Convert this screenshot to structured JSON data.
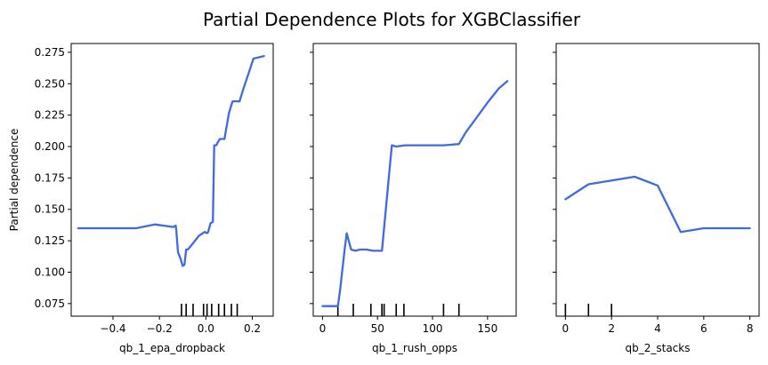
{
  "figure": {
    "title": "Partial Dependence Plots for XGBClassifier"
  },
  "colors": {
    "line": "#4169e1",
    "rug": "#000000"
  },
  "chart_data": [
    {
      "type": "line",
      "xlabel": "qb_1_epa_dropback",
      "ylabel": "Partial dependence",
      "xlim": [
        -0.58,
        0.29
      ],
      "ylim": [
        0.065,
        0.282
      ],
      "xticks": [
        -0.4,
        -0.2,
        0.0,
        0.2
      ],
      "xtick_labels": [
        "−0.4",
        "−0.2",
        "0.0",
        "0.2"
      ],
      "yticks": [
        0.075,
        0.1,
        0.125,
        0.15,
        0.175,
        0.2,
        0.225,
        0.25,
        0.275
      ],
      "ytick_labels": [
        "0.075",
        "0.100",
        "0.125",
        "0.150",
        "0.175",
        "0.200",
        "0.225",
        "0.250",
        "0.275"
      ],
      "show_yticklabels": true,
      "x": [
        -0.55,
        -0.3,
        -0.22,
        -0.14,
        -0.13,
        -0.128,
        -0.12,
        -0.108,
        -0.1,
        -0.092,
        -0.085,
        -0.078,
        -0.06,
        -0.03,
        -0.005,
        0.005,
        0.01,
        0.02,
        0.03,
        0.036,
        0.045,
        0.05,
        0.06,
        0.07,
        0.08,
        0.1,
        0.115,
        0.13,
        0.145,
        0.16,
        0.205,
        0.25
      ],
      "y": [
        0.135,
        0.135,
        0.138,
        0.136,
        0.137,
        0.135,
        0.116,
        0.11,
        0.105,
        0.106,
        0.118,
        0.118,
        0.122,
        0.129,
        0.132,
        0.131,
        0.132,
        0.139,
        0.14,
        0.201,
        0.201,
        0.203,
        0.206,
        0.206,
        0.206,
        0.227,
        0.236,
        0.236,
        0.236,
        0.245,
        0.27,
        0.272
      ],
      "rug": [
        -0.105,
        -0.085,
        -0.055,
        -0.01,
        0.005,
        0.025,
        0.055,
        0.08,
        0.11,
        0.135
      ]
    },
    {
      "type": "line",
      "xlabel": "qb_1_rush_opps",
      "ylabel": "",
      "xlim": [
        -8.4,
        176
      ],
      "ylim": [
        0.065,
        0.282
      ],
      "xticks": [
        0,
        50,
        100,
        150
      ],
      "xtick_labels": [
        "0",
        "50",
        "100",
        "150"
      ],
      "yticks": [
        0.075,
        0.1,
        0.125,
        0.15,
        0.175,
        0.2,
        0.225,
        0.25,
        0.275
      ],
      "ytick_labels": [],
      "show_yticklabels": false,
      "x": [
        0,
        14,
        16,
        20,
        22,
        26,
        30,
        34,
        40,
        46,
        54,
        63,
        67,
        75,
        82,
        96,
        110,
        124,
        130,
        140,
        150,
        160,
        168
      ],
      "y": [
        0.073,
        0.073,
        0.086,
        0.117,
        0.131,
        0.118,
        0.117,
        0.118,
        0.118,
        0.117,
        0.117,
        0.201,
        0.2,
        0.201,
        0.201,
        0.201,
        0.201,
        0.202,
        0.211,
        0.223,
        0.235,
        0.246,
        0.252
      ],
      "rug": [
        14,
        28,
        44,
        54,
        56,
        67,
        74,
        110,
        124
      ]
    },
    {
      "type": "line",
      "xlabel": "qb_2_stacks",
      "ylabel": "",
      "xlim": [
        -0.4,
        8.4
      ],
      "ylim": [
        0.065,
        0.282
      ],
      "xticks": [
        0,
        2,
        4,
        6,
        8
      ],
      "xtick_labels": [
        "0",
        "2",
        "4",
        "6",
        "8"
      ],
      "yticks": [
        0.075,
        0.1,
        0.125,
        0.15,
        0.175,
        0.2,
        0.225,
        0.25,
        0.275
      ],
      "ytick_labels": [],
      "show_yticklabels": false,
      "x": [
        0,
        1,
        2,
        3,
        4,
        5,
        6,
        7,
        8
      ],
      "y": [
        0.158,
        0.17,
        0.173,
        0.176,
        0.169,
        0.132,
        0.135,
        0.135,
        0.135
      ],
      "rug": [
        0,
        1,
        2
      ]
    }
  ]
}
